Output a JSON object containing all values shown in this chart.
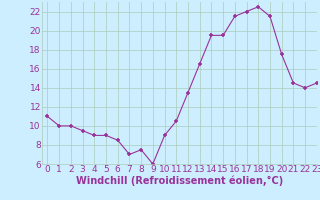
{
  "x": [
    0,
    1,
    2,
    3,
    4,
    5,
    6,
    7,
    8,
    9,
    10,
    11,
    12,
    13,
    14,
    15,
    16,
    17,
    18,
    19,
    20,
    21,
    22,
    23
  ],
  "y": [
    11,
    10,
    10,
    9.5,
    9,
    9,
    8.5,
    7,
    7.5,
    6,
    9,
    10.5,
    13.5,
    16.5,
    19.5,
    19.5,
    21.5,
    22,
    22.5,
    21.5,
    17.5,
    14.5,
    14,
    14.5
  ],
  "line_color": "#993399",
  "marker_color": "#993399",
  "bg_color": "#cceeff",
  "grid_color": "#aaccbb",
  "xlabel": "Windchill (Refroidissement éolien,°C)",
  "ylim": [
    6,
    23
  ],
  "xlim": [
    -0.5,
    23
  ],
  "yticks": [
    6,
    8,
    10,
    12,
    14,
    16,
    18,
    20,
    22
  ],
  "xticks": [
    0,
    1,
    2,
    3,
    4,
    5,
    6,
    7,
    8,
    9,
    10,
    11,
    12,
    13,
    14,
    15,
    16,
    17,
    18,
    19,
    20,
    21,
    22,
    23
  ],
  "font_color": "#993399",
  "font_size": 6.5,
  "label_font_size": 7
}
